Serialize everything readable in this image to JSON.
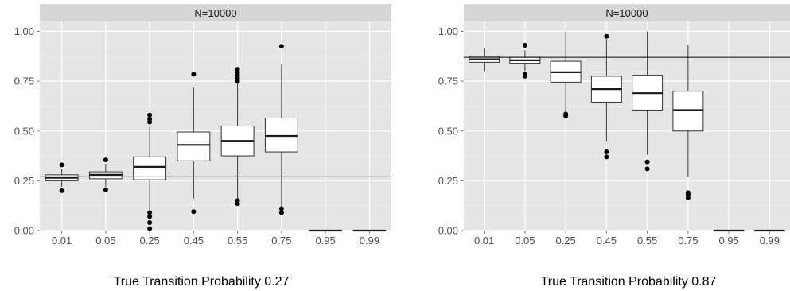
{
  "chart_data": [
    {
      "type": "boxplot",
      "panel_label": "N=10000",
      "caption": "True Transition Probability 0.27",
      "categories": [
        "0.01",
        "0.05",
        "0.25",
        "0.45",
        "0.55",
        "0.75",
        "0.95",
        "0.99"
      ],
      "y_ticks": [
        "0.00",
        "0.25",
        "0.50",
        "0.75",
        "1.00"
      ],
      "ylim": [
        0,
        1.05
      ],
      "reference_line": 0.27,
      "grid": true,
      "boxes": [
        {
          "q1": 0.25,
          "median": 0.265,
          "q3": 0.28,
          "whisker_low": 0.22,
          "whisker_high": 0.31,
          "outliers": [
            0.2,
            0.33
          ]
        },
        {
          "q1": 0.26,
          "median": 0.28,
          "q3": 0.295,
          "whisker_low": 0.22,
          "whisker_high": 0.335,
          "outliers": [
            0.205,
            0.355
          ]
        },
        {
          "q1": 0.255,
          "median": 0.32,
          "q3": 0.37,
          "whisker_low": 0.1,
          "whisker_high": 0.52,
          "outliers": [
            0.01,
            0.04,
            0.07,
            0.09,
            0.545,
            0.56,
            0.58
          ]
        },
        {
          "q1": 0.35,
          "median": 0.43,
          "q3": 0.495,
          "whisker_low": 0.16,
          "whisker_high": 0.72,
          "outliers": [
            0.095,
            0.785
          ]
        },
        {
          "q1": 0.375,
          "median": 0.45,
          "q3": 0.525,
          "whisker_low": 0.16,
          "whisker_high": 0.74,
          "outliers": [
            0.135,
            0.15,
            0.75,
            0.765,
            0.78,
            0.795,
            0.81
          ]
        },
        {
          "q1": 0.395,
          "median": 0.475,
          "q3": 0.565,
          "whisker_low": 0.12,
          "whisker_high": 0.835,
          "outliers": [
            0.09,
            0.11,
            0.925
          ]
        },
        {
          "q1": 0,
          "median": 0,
          "q3": 0,
          "whisker_low": 0,
          "whisker_high": 0,
          "outliers": []
        },
        {
          "q1": 0,
          "median": 0,
          "q3": 0,
          "whisker_low": 0,
          "whisker_high": 0,
          "outliers": []
        }
      ]
    },
    {
      "type": "boxplot",
      "panel_label": "N=10000",
      "caption": "True Transition Probability 0.87",
      "categories": [
        "0.01",
        "0.05",
        "0.25",
        "0.45",
        "0.55",
        "0.75",
        "0.95",
        "0.99"
      ],
      "y_ticks": [
        "0.00",
        "0.25",
        "0.50",
        "0.75",
        "1.00"
      ],
      "ylim": [
        0,
        1.05
      ],
      "reference_line": 0.87,
      "grid": true,
      "boxes": [
        {
          "q1": 0.845,
          "median": 0.86,
          "q3": 0.875,
          "whisker_low": 0.8,
          "whisker_high": 0.915,
          "outliers": []
        },
        {
          "q1": 0.84,
          "median": 0.855,
          "q3": 0.87,
          "whisker_low": 0.8,
          "whisker_high": 0.905,
          "outliers": [
            0.775,
            0.785,
            0.93
          ]
        },
        {
          "q1": 0.745,
          "median": 0.795,
          "q3": 0.85,
          "whisker_low": 0.6,
          "whisker_high": 1.0,
          "outliers": [
            0.575,
            0.585
          ]
        },
        {
          "q1": 0.645,
          "median": 0.71,
          "q3": 0.775,
          "whisker_low": 0.45,
          "whisker_high": 0.96,
          "outliers": [
            0.37,
            0.395,
            0.975
          ]
        },
        {
          "q1": 0.605,
          "median": 0.69,
          "q3": 0.78,
          "whisker_low": 0.38,
          "whisker_high": 1.0,
          "outliers": [
            0.31,
            0.345
          ]
        },
        {
          "q1": 0.5,
          "median": 0.605,
          "q3": 0.7,
          "whisker_low": 0.27,
          "whisker_high": 0.935,
          "outliers": [
            0.165,
            0.18,
            0.19
          ]
        },
        {
          "q1": 0,
          "median": 0,
          "q3": 0,
          "whisker_low": 0,
          "whisker_high": 0,
          "outliers": []
        },
        {
          "q1": 0,
          "median": 0,
          "q3": 0,
          "whisker_low": 0,
          "whisker_high": 0,
          "outliers": []
        }
      ]
    }
  ]
}
